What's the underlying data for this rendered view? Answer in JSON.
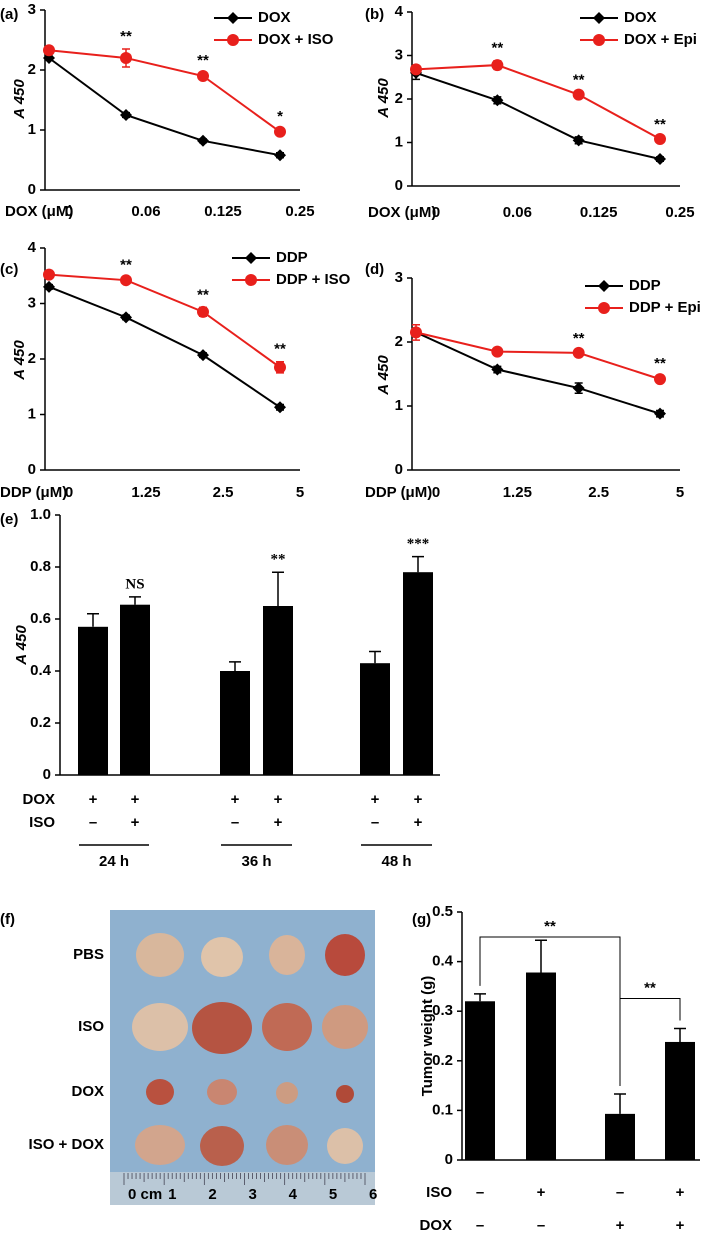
{
  "chart_data": [
    {
      "type": "line",
      "panel": "(a)",
      "ylabel": "A 450",
      "xlabel": "DOX (μM)",
      "categories": [
        "0",
        "0.06",
        "0.125",
        "0.25"
      ],
      "ylim": [
        0,
        3
      ],
      "yticks": [
        0,
        1,
        2,
        3
      ],
      "legend": "upper right",
      "series": [
        {
          "name": "DOX",
          "color": "#000000",
          "marker": "diamond",
          "values": [
            2.2,
            1.25,
            0.82,
            0.58
          ],
          "errors": [
            0.03,
            0.04,
            0.03,
            0.04
          ]
        },
        {
          "name": "DOX + ISO",
          "color": "#e8201c",
          "marker": "circle",
          "values": [
            2.33,
            2.2,
            1.9,
            0.97
          ],
          "errors": [
            0.05,
            0.15,
            0.05,
            0.05
          ]
        }
      ],
      "annotations": [
        null,
        "**",
        "**",
        "*"
      ]
    },
    {
      "type": "line",
      "panel": "(b)",
      "ylabel": "A 450",
      "xlabel": "DOX (μM)",
      "categories": [
        "0",
        "0.06",
        "0.125",
        "0.25"
      ],
      "ylim": [
        0,
        4
      ],
      "yticks": [
        0,
        1,
        2,
        3,
        4
      ],
      "legend": "upper right",
      "series": [
        {
          "name": "DOX",
          "color": "#000000",
          "marker": "diamond",
          "values": [
            2.6,
            1.97,
            1.05,
            0.62
          ],
          "errors": [
            0.15,
            0.08,
            0.08,
            0.05
          ]
        },
        {
          "name": "DOX + Epi",
          "color": "#e8201c",
          "marker": "circle",
          "values": [
            2.68,
            2.78,
            2.1,
            1.08
          ],
          "errors": [
            0.05,
            0.1,
            0.05,
            0.05
          ]
        }
      ],
      "annotations": [
        null,
        "**",
        "**",
        "**"
      ]
    },
    {
      "type": "line",
      "panel": "(c)",
      "ylabel": "A 450",
      "xlabel": "DDP (μM)",
      "categories": [
        "0",
        "1.25",
        "2.5",
        "5"
      ],
      "ylim": [
        0,
        4
      ],
      "yticks": [
        0,
        1,
        2,
        3,
        4
      ],
      "legend": "upper right",
      "series": [
        {
          "name": "DDP",
          "color": "#000000",
          "marker": "diamond",
          "values": [
            3.3,
            2.75,
            2.07,
            1.13
          ],
          "errors": [
            0.04,
            0.04,
            0.04,
            0.05
          ]
        },
        {
          "name": "DDP + ISO",
          "color": "#e8201c",
          "marker": "circle",
          "values": [
            3.52,
            3.42,
            2.85,
            1.85
          ],
          "errors": [
            0.05,
            0.05,
            0.08,
            0.1
          ]
        }
      ],
      "annotations": [
        null,
        "**",
        "**",
        "**"
      ]
    },
    {
      "type": "line",
      "panel": "(d)",
      "ylabel": "A 450",
      "xlabel": "DDP (μM)",
      "categories": [
        "0",
        "1.25",
        "2.5",
        "5"
      ],
      "ylim": [
        0,
        3
      ],
      "yticks": [
        0,
        1,
        2,
        3
      ],
      "legend": "upper right",
      "series": [
        {
          "name": "DDP",
          "color": "#000000",
          "marker": "diamond",
          "values": [
            2.15,
            1.57,
            1.28,
            0.88
          ],
          "errors": [
            0.05,
            0.05,
            0.08,
            0.05
          ]
        },
        {
          "name": "DDP + Epi",
          "color": "#e8201c",
          "marker": "circle",
          "values": [
            2.15,
            1.85,
            1.83,
            1.42
          ],
          "errors": [
            0.12,
            0.03,
            0.03,
            0.05
          ]
        }
      ],
      "annotations": [
        null,
        null,
        "**",
        "**"
      ]
    },
    {
      "type": "bar",
      "panel": "(e)",
      "ylabel": "A 450",
      "ylim": [
        0,
        1
      ],
      "yticks": [
        0,
        0.2,
        0.4,
        0.6,
        0.8,
        {
          "value": 1,
          "label": "1.0"
        }
      ],
      "color": "#000000",
      "values": [
        0.57,
        0.655,
        0.4,
        0.65,
        0.43,
        0.78
      ],
      "errors": [
        0.05,
        0.03,
        0.035,
        0.13,
        0.045,
        0.06
      ],
      "annotations": [
        null,
        "NS",
        null,
        "**",
        null,
        "***"
      ],
      "conditions": [
        {
          "name": "DOX",
          "signs": [
            "+",
            "+",
            "+",
            "+",
            "+",
            "+"
          ]
        },
        {
          "name": "ISO",
          "signs": [
            "–",
            "+",
            "–",
            "+",
            "–",
            "+"
          ]
        }
      ],
      "groups": [
        "24 h",
        "36 h",
        "48 h"
      ]
    },
    {
      "type": "image",
      "panel": "(f)",
      "rows": [
        "PBS",
        "ISO",
        "DOX",
        "ISO + DOX"
      ],
      "ruler_labels": [
        "0 cm",
        "1",
        "2",
        "3",
        "4",
        "5",
        "6"
      ]
    },
    {
      "type": "bar",
      "panel": "(g)",
      "ylabel": "Tumor weight (g)",
      "ylim": [
        0,
        0.5
      ],
      "yticks": [
        0,
        0.1,
        0.2,
        0.3,
        0.4,
        0.5
      ],
      "color": "#000000",
      "values": [
        0.32,
        0.378,
        0.093,
        0.238
      ],
      "errors": [
        0.015,
        0.065,
        0.04,
        0.027
      ],
      "conditions": [
        {
          "name": "ISO",
          "signs": [
            "–",
            "+",
            "–",
            "+"
          ]
        },
        {
          "name": "DOX",
          "signs": [
            "–",
            "–",
            "+",
            "+"
          ]
        }
      ],
      "brackets": [
        "**",
        "**"
      ]
    }
  ]
}
